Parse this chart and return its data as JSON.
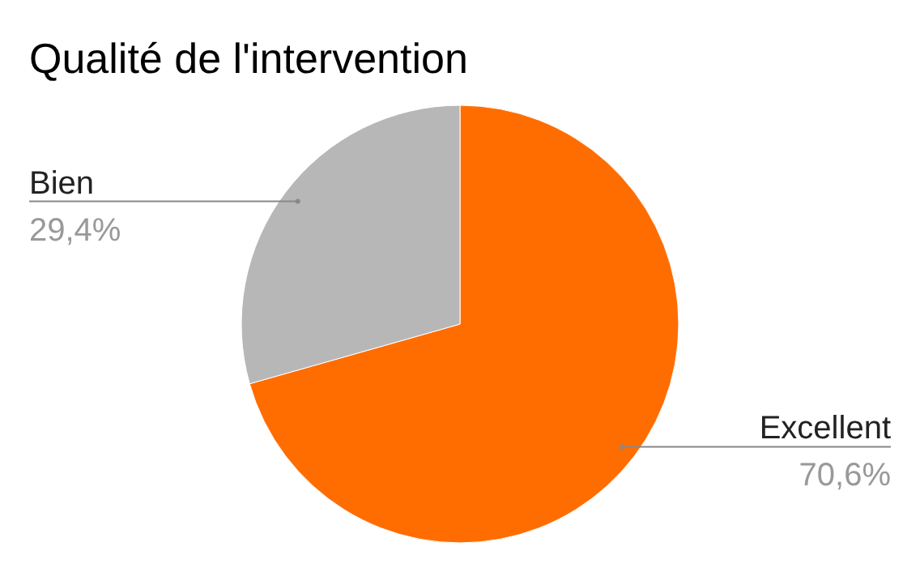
{
  "chart_data": {
    "type": "pie",
    "title": "Qualité de l'intervention",
    "categories": [
      "Excellent",
      "Bien"
    ],
    "values": [
      70.6,
      29.4
    ],
    "value_labels": [
      "70,6%",
      "29,4%"
    ],
    "colors": [
      "#ff6d00",
      "#b7b7b7"
    ]
  }
}
